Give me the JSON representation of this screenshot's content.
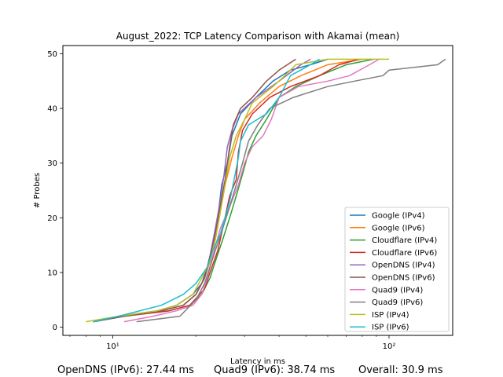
{
  "chart_data": {
    "type": "line",
    "title": "August_2022: TCP Latency Comparison with Akamai (mean)",
    "xlabel": "Latency in ms",
    "ylabel": "# Probes",
    "xscale": "log",
    "xlim": [
      6.6,
      170
    ],
    "ylim": [
      -1.5,
      51.5
    ],
    "xticks": [
      {
        "value": 10,
        "label": "10¹"
      },
      {
        "value": 100,
        "label": "10²"
      }
    ],
    "yticks": [
      0,
      10,
      20,
      30,
      40,
      50
    ],
    "grid": false,
    "legend_position": "lower-right",
    "series": [
      {
        "name": "Google (IPv4)",
        "color": "#1f77b4",
        "points": [
          [
            8.5,
            1
          ],
          [
            10.5,
            2
          ],
          [
            14.5,
            3
          ],
          [
            17,
            4
          ],
          [
            19.5,
            6
          ],
          [
            21,
            8
          ],
          [
            22,
            11
          ],
          [
            23,
            15
          ],
          [
            24,
            20
          ],
          [
            24.8,
            26
          ],
          [
            26,
            30
          ],
          [
            27,
            35
          ],
          [
            29,
            39
          ],
          [
            33,
            42
          ],
          [
            38,
            45
          ],
          [
            44,
            47
          ],
          [
            52,
            48
          ],
          [
            60,
            49
          ]
        ]
      },
      {
        "name": "Google (IPv6)",
        "color": "#ff7f0e",
        "points": [
          [
            8.5,
            1
          ],
          [
            11,
            2
          ],
          [
            15,
            3
          ],
          [
            18,
            4
          ],
          [
            20,
            6
          ],
          [
            21.5,
            9
          ],
          [
            22.5,
            12
          ],
          [
            23.5,
            16
          ],
          [
            24.5,
            21
          ],
          [
            25.5,
            26
          ],
          [
            27,
            31
          ],
          [
            28.5,
            35
          ],
          [
            30,
            38
          ],
          [
            34,
            41
          ],
          [
            40,
            44
          ],
          [
            48,
            46
          ],
          [
            60,
            48
          ],
          [
            80,
            49
          ]
        ]
      },
      {
        "name": "Cloudflare (IPv4)",
        "color": "#2ca02c",
        "points": [
          [
            8.5,
            1
          ],
          [
            11,
            2
          ],
          [
            16,
            3
          ],
          [
            19,
            4
          ],
          [
            21,
            6
          ],
          [
            22.5,
            9
          ],
          [
            23.5,
            12
          ],
          [
            25,
            16
          ],
          [
            26.5,
            20
          ],
          [
            28,
            24
          ],
          [
            29.5,
            28
          ],
          [
            31,
            32
          ],
          [
            33,
            35
          ],
          [
            36,
            38
          ],
          [
            40,
            42
          ],
          [
            46,
            44
          ],
          [
            56,
            46
          ],
          [
            70,
            48
          ],
          [
            88,
            49
          ]
        ]
      },
      {
        "name": "Cloudflare (IPv6)",
        "color": "#d62728",
        "points": [
          [
            8.5,
            1
          ],
          [
            11,
            2
          ],
          [
            16,
            3
          ],
          [
            19,
            4
          ],
          [
            21.5,
            7
          ],
          [
            22.5,
            10
          ],
          [
            24,
            14
          ],
          [
            25,
            18
          ],
          [
            26.5,
            24
          ],
          [
            28,
            27
          ],
          [
            28.5,
            32
          ],
          [
            29.5,
            36
          ],
          [
            32,
            39
          ],
          [
            37,
            42
          ],
          [
            44,
            44
          ],
          [
            56,
            46
          ],
          [
            66,
            48
          ],
          [
            78,
            49
          ]
        ]
      },
      {
        "name": "OpenDNS (IPv4)",
        "color": "#9467bd",
        "points": [
          [
            8.5,
            1
          ],
          [
            11,
            2
          ],
          [
            15,
            3
          ],
          [
            18,
            4
          ],
          [
            20,
            6
          ],
          [
            21.5,
            9
          ],
          [
            22.5,
            13
          ],
          [
            23.5,
            18
          ],
          [
            24.5,
            23
          ],
          [
            25.3,
            28
          ],
          [
            26,
            33
          ],
          [
            27,
            36
          ],
          [
            28.5,
            39
          ],
          [
            33,
            42
          ],
          [
            40,
            45
          ],
          [
            48,
            48
          ],
          [
            52,
            49
          ]
        ]
      },
      {
        "name": "OpenDNS (IPv6)",
        "color": "#8c564b",
        "points": [
          [
            8.5,
            1
          ],
          [
            11,
            2
          ],
          [
            15,
            3
          ],
          [
            18,
            4
          ],
          [
            20,
            6
          ],
          [
            21.5,
            9
          ],
          [
            22.5,
            13
          ],
          [
            23.5,
            17
          ],
          [
            24.5,
            22
          ],
          [
            25.5,
            27
          ],
          [
            26.5,
            33
          ],
          [
            27.3,
            37
          ],
          [
            29,
            40
          ],
          [
            32,
            42
          ],
          [
            36,
            45
          ],
          [
            40,
            47
          ],
          [
            46,
            49
          ]
        ]
      },
      {
        "name": "Quad9 (IPv4)",
        "color": "#e377c2",
        "points": [
          [
            11,
            1
          ],
          [
            14,
            2
          ],
          [
            17,
            3
          ],
          [
            19.5,
            4
          ],
          [
            21,
            6
          ],
          [
            22,
            9
          ],
          [
            23,
            13
          ],
          [
            24.5,
            18
          ],
          [
            26.5,
            22
          ],
          [
            28.5,
            26
          ],
          [
            30,
            30
          ],
          [
            32,
            33
          ],
          [
            35,
            35
          ],
          [
            37.5,
            38
          ],
          [
            40,
            42
          ],
          [
            47,
            44
          ],
          [
            60,
            45
          ],
          [
            72,
            46
          ],
          [
            85,
            48
          ],
          [
            92,
            49
          ]
        ]
      },
      {
        "name": "Quad9 (IPv6)",
        "color": "#7f7f7f",
        "points": [
          [
            12.2,
            1
          ],
          [
            17.5,
            2
          ],
          [
            20,
            5
          ],
          [
            21.5,
            8
          ],
          [
            22.5,
            11
          ],
          [
            23.5,
            14
          ],
          [
            25,
            18
          ],
          [
            26.5,
            22
          ],
          [
            28,
            26
          ],
          [
            29.5,
            30
          ],
          [
            31,
            34
          ],
          [
            33.5,
            37
          ],
          [
            37,
            40
          ],
          [
            45,
            42
          ],
          [
            60,
            44
          ],
          [
            75,
            45
          ],
          [
            95,
            46
          ],
          [
            100,
            47
          ],
          [
            150,
            48
          ],
          [
            160,
            49
          ]
        ]
      },
      {
        "name": "ISP (IPv4)",
        "color": "#bcbd22",
        "points": [
          [
            8,
            1
          ],
          [
            10.5,
            2
          ],
          [
            14.5,
            3
          ],
          [
            17,
            4
          ],
          [
            19.5,
            6
          ],
          [
            21,
            9
          ],
          [
            22.5,
            12
          ],
          [
            23.5,
            16
          ],
          [
            24.5,
            21
          ],
          [
            25.5,
            26
          ],
          [
            26.5,
            31
          ],
          [
            28,
            35
          ],
          [
            30,
            38
          ],
          [
            32,
            41
          ],
          [
            38,
            44
          ],
          [
            42,
            46
          ],
          [
            46,
            48
          ],
          [
            60,
            49
          ],
          [
            100,
            49
          ]
        ]
      },
      {
        "name": "ISP (IPv6)",
        "color": "#17becf",
        "points": [
          [
            8.5,
            1
          ],
          [
            10.5,
            2
          ],
          [
            15,
            4
          ],
          [
            18,
            6
          ],
          [
            20,
            8
          ],
          [
            22,
            11
          ],
          [
            23,
            14
          ],
          [
            24.5,
            17
          ],
          [
            25.5,
            20
          ],
          [
            26.5,
            23
          ],
          [
            27.5,
            27
          ],
          [
            28.5,
            31
          ],
          [
            29,
            34
          ],
          [
            31,
            37
          ],
          [
            36,
            39
          ],
          [
            40,
            42
          ],
          [
            44,
            46
          ],
          [
            52,
            48
          ],
          [
            56,
            49
          ]
        ]
      }
    ]
  },
  "footer": {
    "item1": "OpenDNS (IPv6): 27.44 ms",
    "item2": "Quad9 (IPv6): 38.74 ms",
    "item3": "Overall: 30.9 ms"
  }
}
